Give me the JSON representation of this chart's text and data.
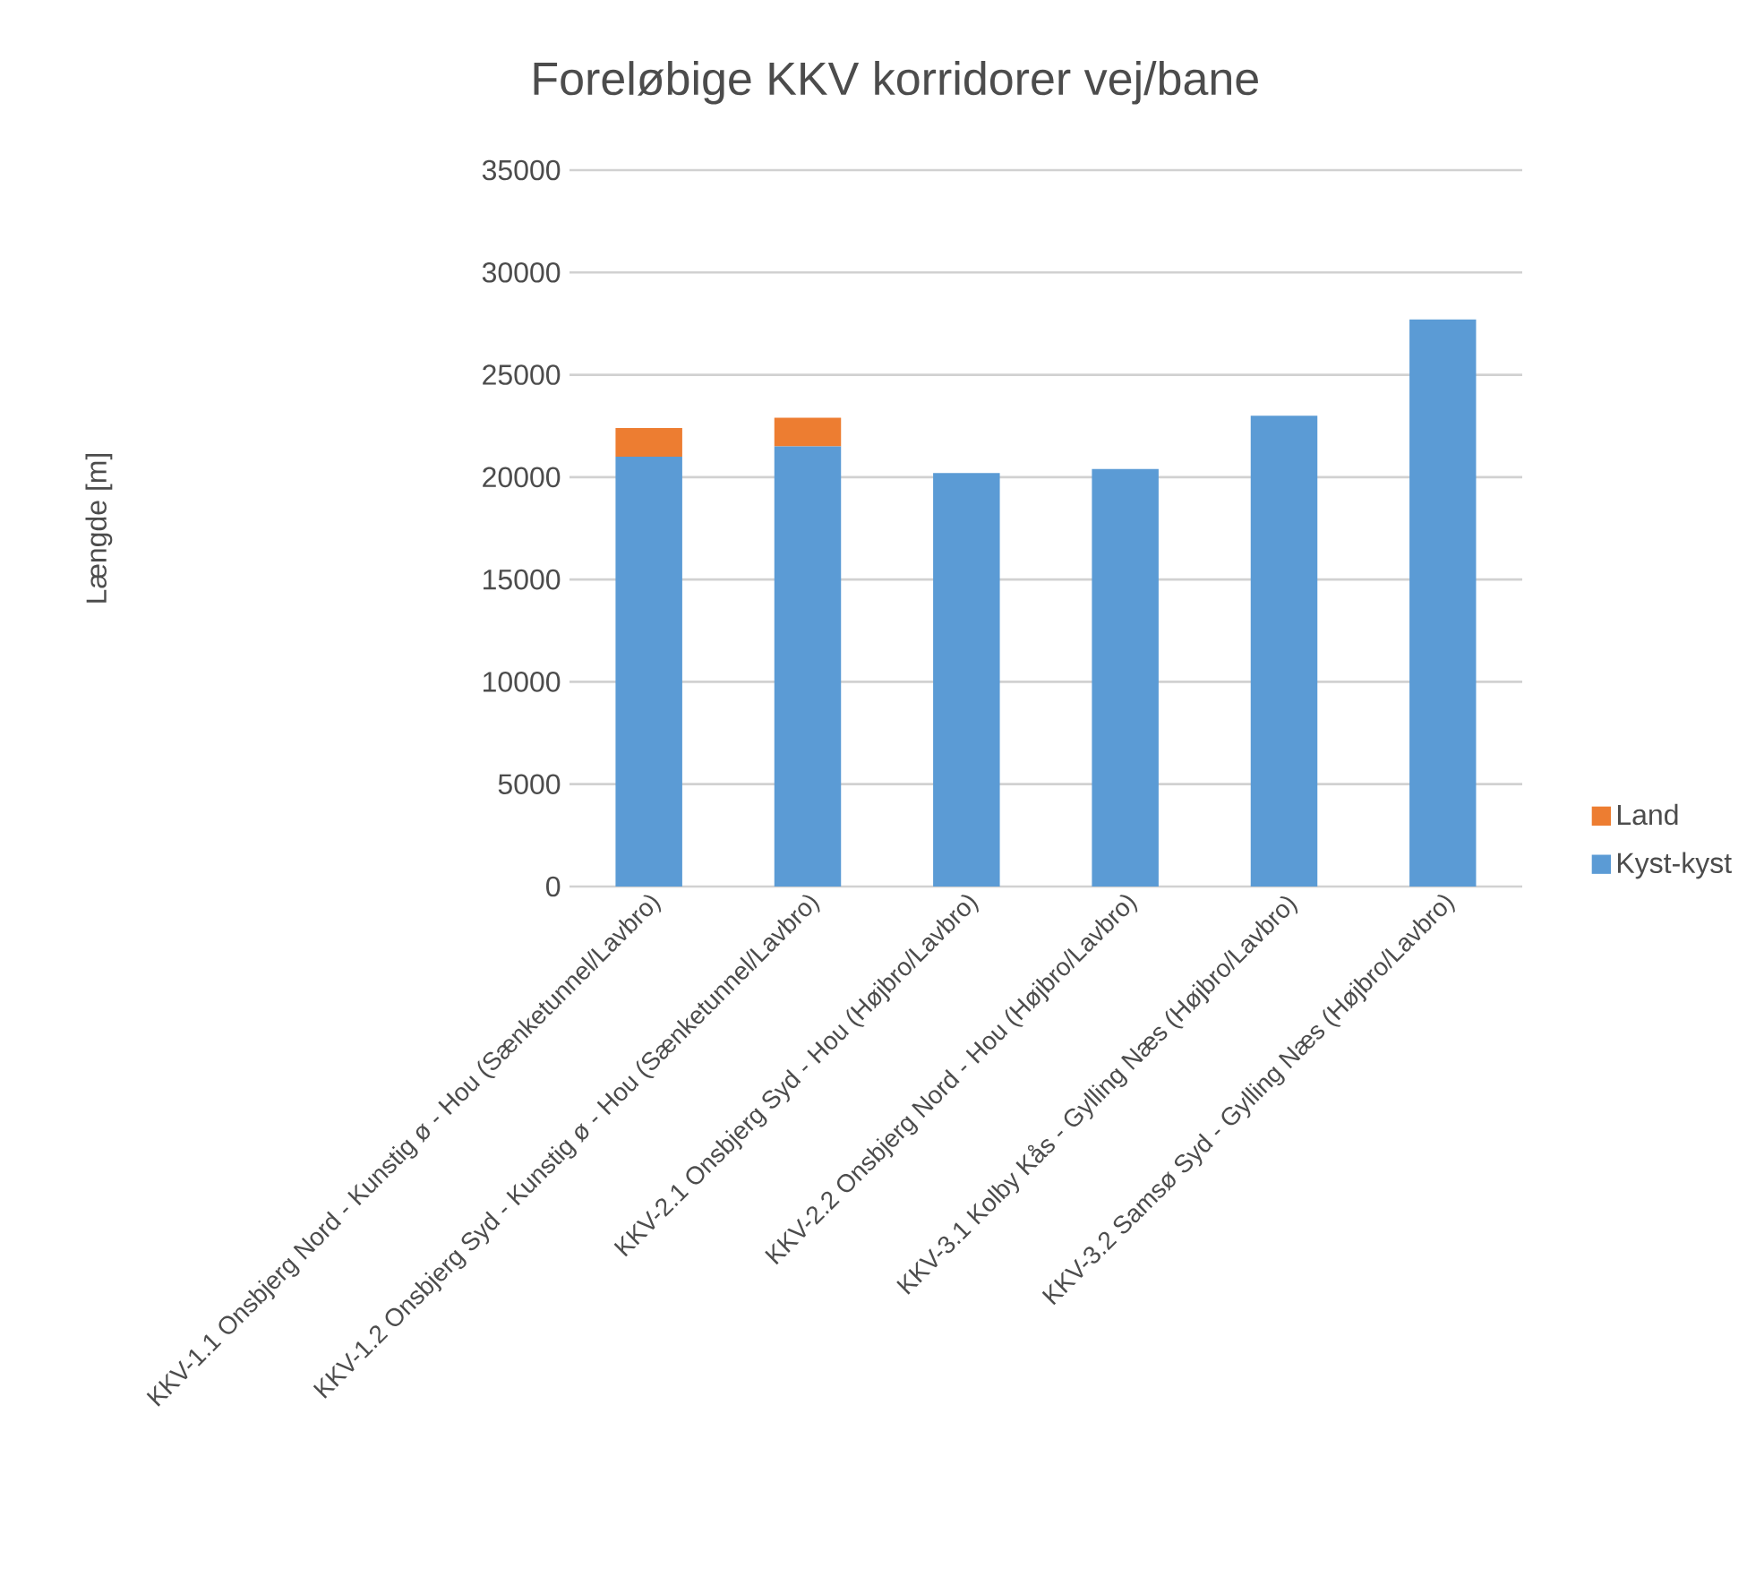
{
  "chart_data": {
    "type": "bar",
    "stacked": true,
    "title": "Foreløbige KKV korridorer vej/bane",
    "ylabel": "Længde [m]",
    "categories": [
      "KKV-1.1 Onsbjerg Nord - Kunstig ø - Hou (Sænketunnel/Lavbro)",
      "KKV-1.2 Onsbjerg Syd - Kunstig ø - Hou (Sænketunnel/Lavbro)",
      "KKV-2.1 Onsbjerg Syd - Hou (Højbro/Lavbro)",
      "KKV-2.2 Onsbjerg Nord - Hou (Højbro/Lavbro)",
      "KKV-3.1 Kolby Kås - Gylling Næs (Højbro/Lavbro)",
      "KKV-3.2 Samsø Syd - Gylling Næs (Højbro/Lavbro)"
    ],
    "series": [
      {
        "name": "Kyst-kyst",
        "color": "#5b9bd5",
        "values": [
          21000,
          21500,
          20200,
          20400,
          23000,
          27700
        ]
      },
      {
        "name": "Land",
        "color": "#ed7d31",
        "values": [
          1400,
          1400,
          0,
          0,
          0,
          0
        ]
      }
    ],
    "ylim": [
      0,
      35000
    ],
    "yticks": [
      0,
      5000,
      10000,
      15000,
      20000,
      25000,
      30000,
      35000
    ],
    "grid": "y",
    "legend": "right"
  }
}
